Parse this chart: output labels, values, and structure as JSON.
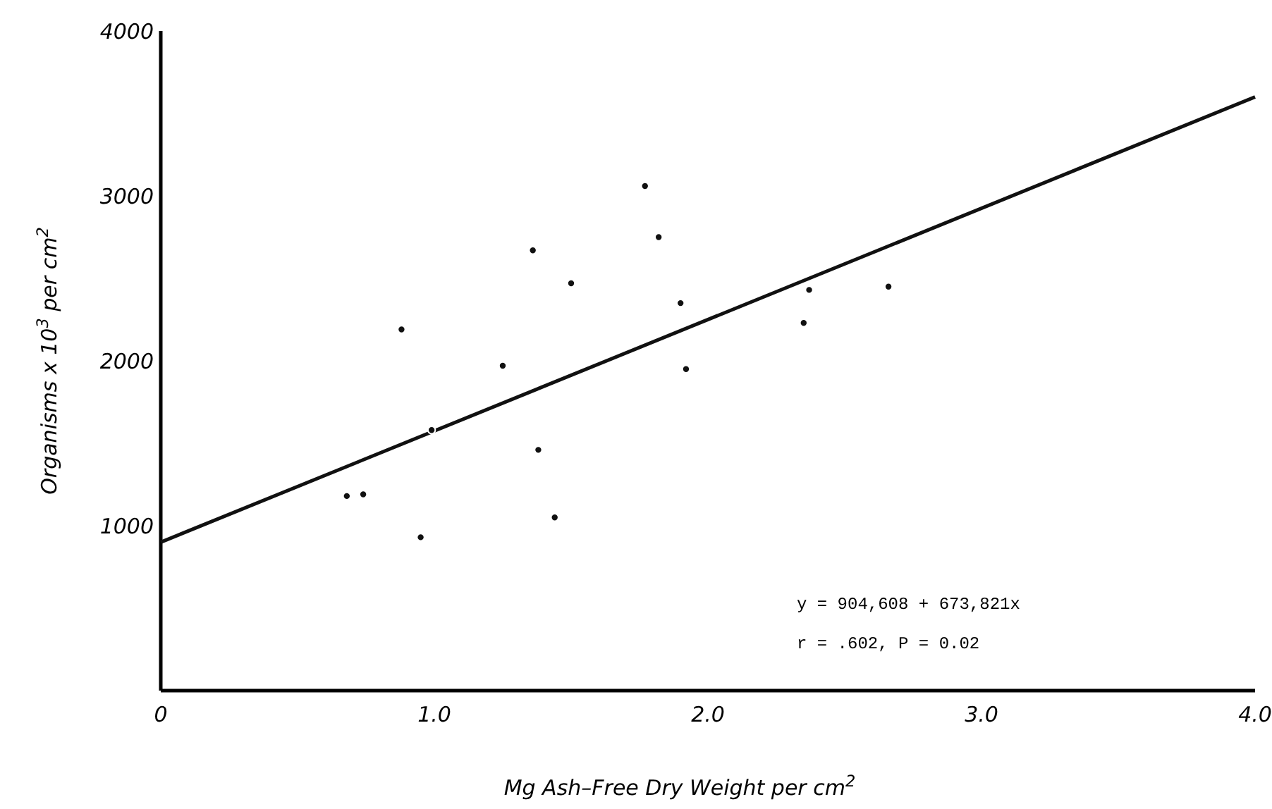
{
  "chart_data": {
    "type": "scatter",
    "xlabel": "Mg  Ash–Free Dry Weight per cm$^{2}$",
    "ylabel": "Organisms  x  10$^{3}$ per cm$^{2}$",
    "xlim": [
      0,
      4
    ],
    "ylim": [
      0,
      4000
    ],
    "xticks": [
      0,
      {
        "value": 1,
        "label": "1.0"
      },
      {
        "value": 2,
        "label": "2.0"
      },
      {
        "value": 3,
        "label": "3.0"
      },
      {
        "value": 4,
        "label": "4.0"
      }
    ],
    "yticks": [
      1000,
      2000,
      3000,
      4000
    ],
    "grid": false,
    "series": [
      {
        "marker": "circle",
        "color": "#111111",
        "x": [
          0.68,
          0.74,
          0.88,
          0.95,
          0.99,
          1.25,
          1.36,
          1.38,
          1.44,
          1.5,
          1.77,
          1.82,
          1.9,
          1.92,
          2.35,
          2.37,
          2.66
        ],
        "values": [
          1180,
          1190,
          2190,
          930,
          1580,
          1970,
          2670,
          1460,
          1050,
          2470,
          3060,
          2750,
          2350,
          1950,
          2230,
          2430,
          2450
        ]
      },
      {
        "type": "line",
        "color": "#111111",
        "x": [
          0,
          4
        ],
        "values": [
          900,
          3600
        ]
      }
    ],
    "annotations": [
      "y = 904,608 + 673,821x",
      "r = .602, P = 0.02"
    ]
  }
}
